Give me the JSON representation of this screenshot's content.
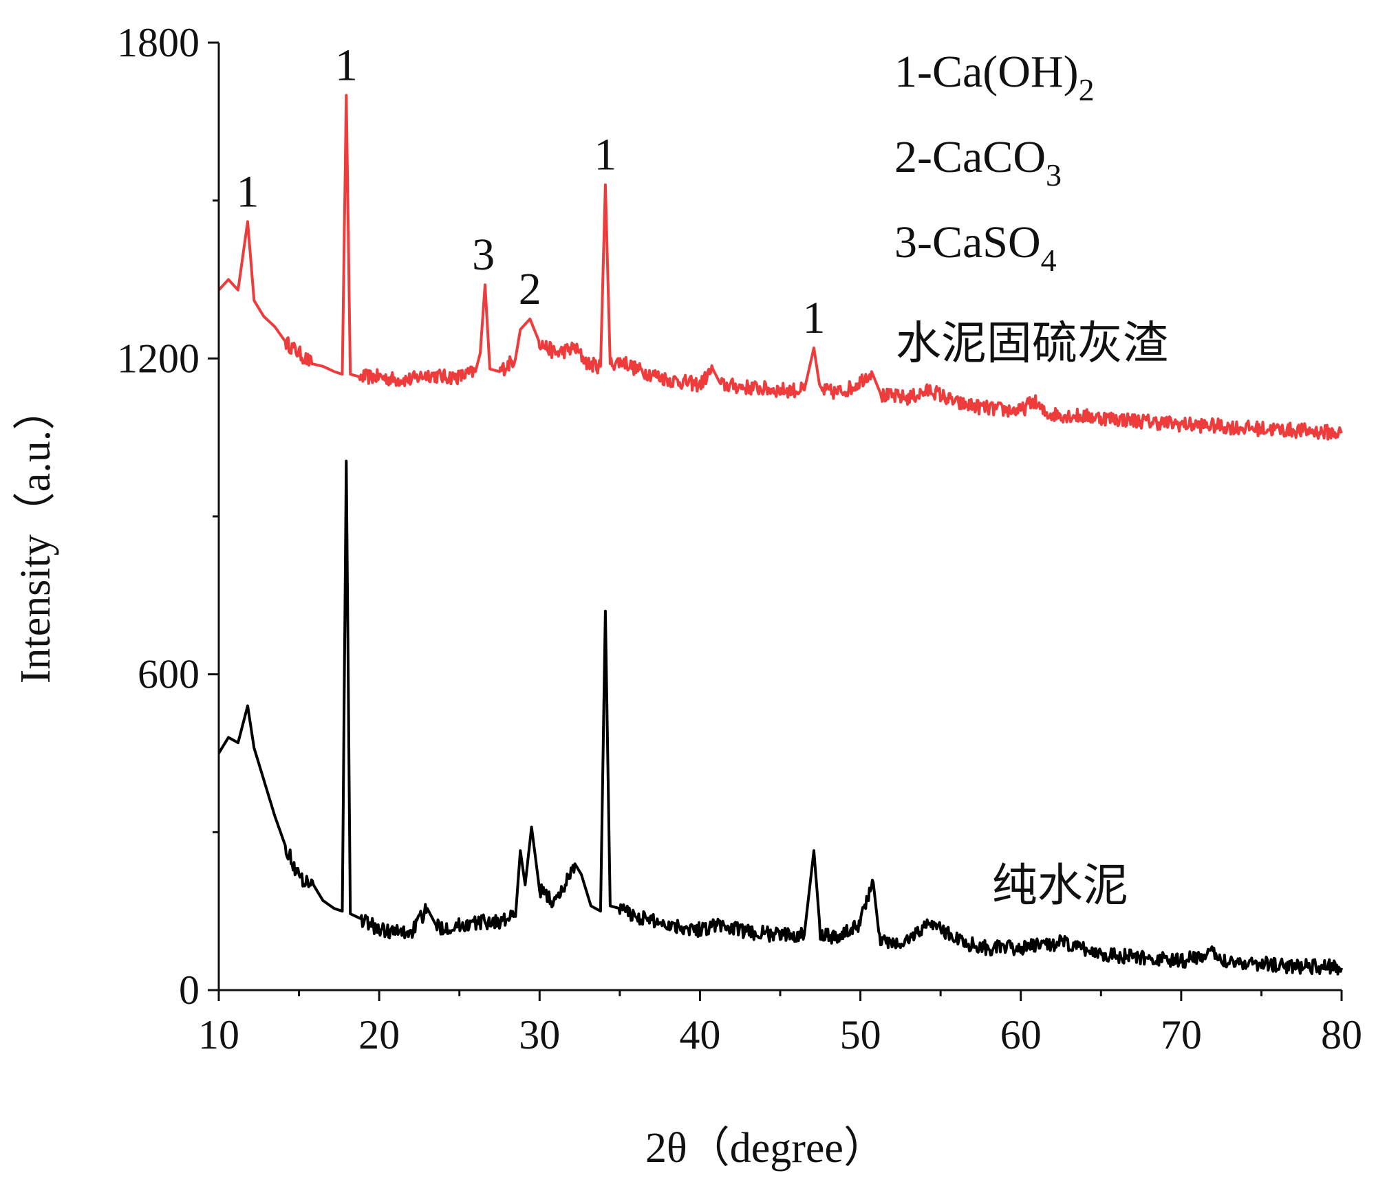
{
  "chart_data": {
    "type": "line",
    "xlabel": "2θ（degree）",
    "ylabel": "Intensity（a.u.）",
    "xlim": [
      10,
      80
    ],
    "ylim": [
      0,
      1800
    ],
    "x_ticks": [
      "10",
      "20",
      "30",
      "40",
      "50",
      "60",
      "70",
      "80"
    ],
    "y_ticks": [
      "0",
      "600",
      "1200",
      "1800"
    ],
    "grid": false,
    "legend": [
      {
        "code": "1-Ca(OH)",
        "sub": "2"
      },
      {
        "code": "2-CaCO",
        "sub": "3"
      },
      {
        "code": "3-CaSO",
        "sub": "4"
      }
    ],
    "legend_position": "top-right",
    "series": [
      {
        "name": "水泥固硫灰渣",
        "color": "#ee3b3b",
        "points": [
          [
            10,
            1330
          ],
          [
            10.6,
            1350
          ],
          [
            11.2,
            1330
          ],
          [
            11.8,
            1460
          ],
          [
            12.2,
            1310
          ],
          [
            12.8,
            1280
          ],
          [
            13.5,
            1260
          ],
          [
            14.2,
            1230
          ],
          [
            15,
            1210
          ],
          [
            15.8,
            1190
          ],
          [
            16.5,
            1185
          ],
          [
            17.2,
            1175
          ],
          [
            17.7,
            1170
          ],
          [
            17.95,
            1700
          ],
          [
            18.2,
            1170
          ],
          [
            18.8,
            1165
          ],
          [
            20,
            1165
          ],
          [
            21,
            1160
          ],
          [
            22,
            1160
          ],
          [
            23,
            1170
          ],
          [
            24,
            1165
          ],
          [
            25,
            1165
          ],
          [
            26,
            1175
          ],
          [
            26.3,
            1210
          ],
          [
            26.6,
            1340
          ],
          [
            26.9,
            1180
          ],
          [
            27.5,
            1175
          ],
          [
            28.5,
            1200
          ],
          [
            28.8,
            1255
          ],
          [
            29.4,
            1275
          ],
          [
            30,
            1230
          ],
          [
            31,
            1210
          ],
          [
            32.2,
            1220
          ],
          [
            33,
            1190
          ],
          [
            33.8,
            1185
          ],
          [
            34.1,
            1530
          ],
          [
            34.4,
            1190
          ],
          [
            35.2,
            1195
          ],
          [
            36,
            1180
          ],
          [
            38,
            1160
          ],
          [
            40,
            1150
          ],
          [
            40.8,
            1180
          ],
          [
            41.3,
            1150
          ],
          [
            43,
            1145
          ],
          [
            45,
            1140
          ],
          [
            46.5,
            1140
          ],
          [
            47.1,
            1220
          ],
          [
            47.5,
            1140
          ],
          [
            48.5,
            1135
          ],
          [
            49.5,
            1145
          ],
          [
            50.7,
            1175
          ],
          [
            51.3,
            1130
          ],
          [
            53,
            1125
          ],
          [
            54.4,
            1140
          ],
          [
            56,
            1115
          ],
          [
            58,
            1105
          ],
          [
            60,
            1100
          ],
          [
            60.8,
            1120
          ],
          [
            61.5,
            1095
          ],
          [
            64,
            1090
          ],
          [
            66,
            1085
          ],
          [
            68,
            1080
          ],
          [
            70,
            1075
          ],
          [
            72,
            1072
          ],
          [
            74,
            1068
          ],
          [
            76,
            1065
          ],
          [
            78,
            1062
          ],
          [
            80,
            1058
          ]
        ]
      },
      {
        "name": "纯水泥",
        "color": "#000000",
        "points": [
          [
            10,
            450
          ],
          [
            10.6,
            480
          ],
          [
            11.2,
            470
          ],
          [
            11.8,
            540
          ],
          [
            12.2,
            460
          ],
          [
            12.8,
            400
          ],
          [
            13.5,
            330
          ],
          [
            14.2,
            270
          ],
          [
            15,
            215
          ],
          [
            15.9,
            200
          ],
          [
            16.5,
            170
          ],
          [
            17.2,
            155
          ],
          [
            17.7,
            150
          ],
          [
            17.95,
            1005
          ],
          [
            18.2,
            145
          ],
          [
            18.9,
            135
          ],
          [
            20,
            115
          ],
          [
            21,
            110
          ],
          [
            22,
            110
          ],
          [
            23,
            155
          ],
          [
            23.6,
            120
          ],
          [
            24.5,
            120
          ],
          [
            25.5,
            125
          ],
          [
            26.5,
            130
          ],
          [
            27.5,
            130
          ],
          [
            28.5,
            140
          ],
          [
            28.8,
            265
          ],
          [
            29.1,
            200
          ],
          [
            29.5,
            310
          ],
          [
            30,
            190
          ],
          [
            31,
            165
          ],
          [
            32.2,
            240
          ],
          [
            32.6,
            220
          ],
          [
            33.2,
            160
          ],
          [
            33.8,
            150
          ],
          [
            34.1,
            720
          ],
          [
            34.4,
            160
          ],
          [
            35,
            155
          ],
          [
            36,
            140
          ],
          [
            38,
            125
          ],
          [
            40,
            115
          ],
          [
            41,
            125
          ],
          [
            43,
            110
          ],
          [
            45,
            105
          ],
          [
            46.5,
            105
          ],
          [
            47.1,
            265
          ],
          [
            47.5,
            110
          ],
          [
            48.5,
            100
          ],
          [
            49.8,
            120
          ],
          [
            50.8,
            205
          ],
          [
            51.2,
            95
          ],
          [
            52.5,
            85
          ],
          [
            54.4,
            130
          ],
          [
            55.3,
            110
          ],
          [
            56.5,
            90
          ],
          [
            58,
            80
          ],
          [
            60,
            80
          ],
          [
            62.5,
            90
          ],
          [
            64.2,
            75
          ],
          [
            66,
            65
          ],
          [
            68,
            60
          ],
          [
            70,
            55
          ],
          [
            71.8,
            70
          ],
          [
            73,
            55
          ],
          [
            75,
            50
          ],
          [
            77,
            45
          ],
          [
            79,
            45
          ],
          [
            80,
            42
          ]
        ]
      }
    ],
    "peak_annotations": [
      {
        "label": "1",
        "x": 11.8,
        "y": 1460
      },
      {
        "label": "1",
        "x": 17.95,
        "y": 1700
      },
      {
        "label": "3",
        "x": 26.5,
        "y": 1340
      },
      {
        "label": "2",
        "x": 29.4,
        "y": 1275
      },
      {
        "label": "1",
        "x": 34.1,
        "y": 1530
      },
      {
        "label": "1",
        "x": 47.1,
        "y": 1220
      }
    ],
    "series_labels": [
      {
        "text": "水泥固硫灰渣",
        "x": 52.2,
        "y": 1200
      },
      {
        "text": "纯水泥",
        "x": 58.2,
        "y": 170
      }
    ]
  }
}
